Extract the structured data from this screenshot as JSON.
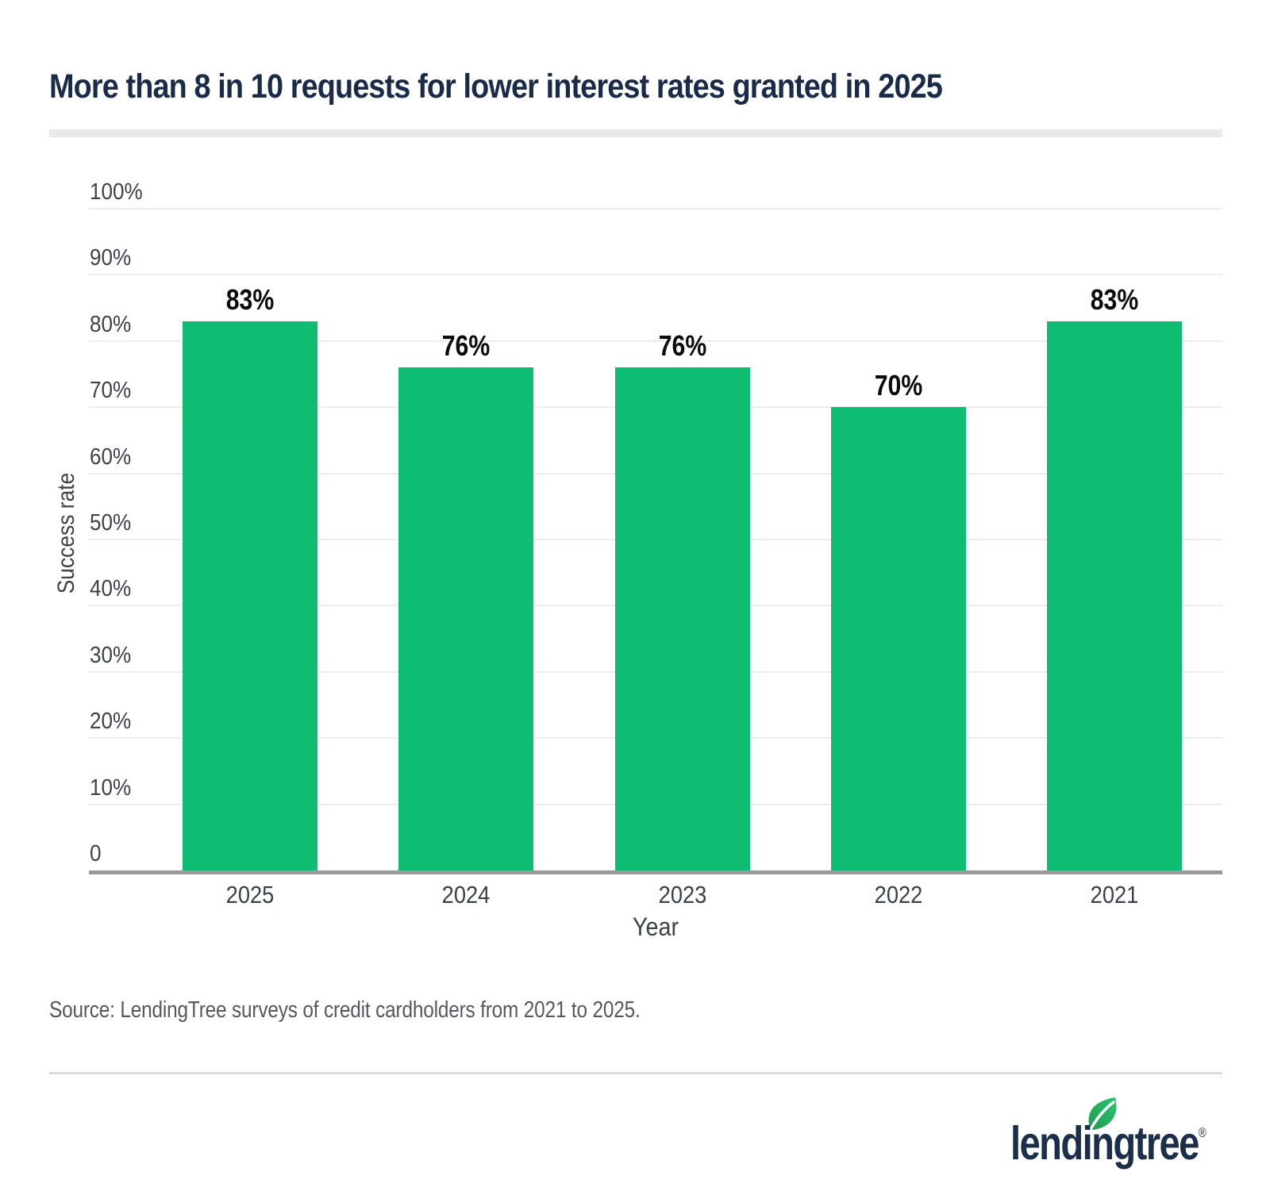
{
  "page": {
    "source": "Source: LendingTree surveys of credit cardholders from 2021 to 2025.",
    "logo_text": "lendingtree",
    "logo_reg_mark": "®"
  },
  "chart_data": {
    "type": "bar",
    "title": "More than 8 in 10 requests for lower interest rates granted in 2025",
    "categories": [
      "2025",
      "2024",
      "2023",
      "2022",
      "2021"
    ],
    "values": [
      83,
      76,
      76,
      70,
      83
    ],
    "data_labels": [
      "83%",
      "76%",
      "76%",
      "70%",
      "83%"
    ],
    "xlabel": "Year",
    "ylabel": "Success rate",
    "ylim": [
      0,
      100
    ],
    "ytick_step": 10,
    "ytick_labels": [
      "0",
      "10%",
      "20%",
      "30%",
      "40%",
      "50%",
      "60%",
      "70%",
      "80%",
      "90%",
      "100%"
    ],
    "grid": true,
    "legend": "none",
    "bar_color": "#0ebd71"
  },
  "theme": {
    "background": "#ffffff",
    "title_color": "#1a2b49",
    "ytick_color": "#3e4347",
    "xtick_color": "#3a4148",
    "bar_label_color": "#0b0b0b",
    "gridline_color": "#ececec",
    "axis_line_color": "#9b9b9b",
    "title_underline_color": "#e9e9e9",
    "divider_color": "#dcdcdc",
    "source_color": "#55585c",
    "logo_navy": "#1b2e4a",
    "leaf_green_dark": "#1e9b51",
    "leaf_green_light": "#2cc571"
  }
}
